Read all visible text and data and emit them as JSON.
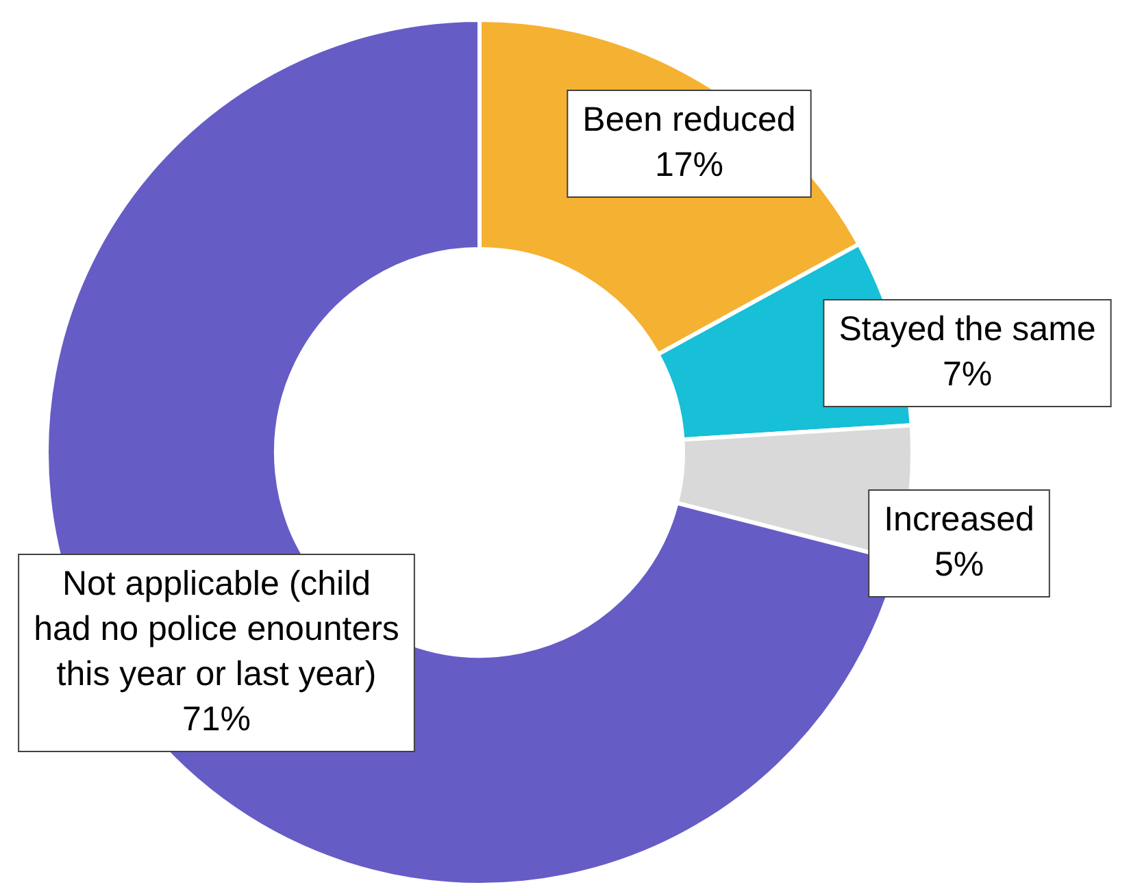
{
  "chart_data": {
    "type": "donut",
    "categories": [
      "Been reduced",
      "Stayed the same",
      "Increased",
      "Not applicable (child had no police enounters this year or last year)"
    ],
    "values": [
      17,
      7,
      5,
      71
    ],
    "value_labels": [
      "17%",
      "7%",
      "5%",
      "71%"
    ],
    "colors": [
      "#f5b131",
      "#17bfd7",
      "#d9d9d9",
      "#665cc6"
    ],
    "legend": false
  }
}
